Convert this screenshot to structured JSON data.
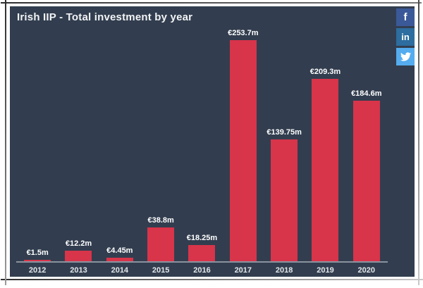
{
  "header": {
    "title": "Irish IIP - Total investment by year"
  },
  "social": {
    "facebook_glyph": "f",
    "linkedin_glyph": "in"
  },
  "colors": {
    "panel_background": "#323e4f",
    "bar_red": "#d8344a",
    "axis_line": "#9aa1ab",
    "facebook_blue": "#3b5998",
    "linkedin_blue": "#2d6d9f",
    "twitter_blue": "#55acee"
  },
  "chart_data": {
    "type": "bar",
    "title": "Irish IIP - Total investment by year",
    "categories": [
      "2012",
      "2013",
      "2014",
      "2015",
      "2016",
      "2017",
      "2018",
      "2019",
      "2020"
    ],
    "values": [
      1.5,
      12.2,
      4.45,
      38.8,
      18.25,
      253.7,
      139.75,
      209.3,
      184.6
    ],
    "value_labels": [
      "€1.5m",
      "€12.2m",
      "€4.45m",
      "€38.8m",
      "€18.25m",
      "€253.7m",
      "€139.75m",
      "€209.3m",
      "€184.6m"
    ],
    "xlabel": "",
    "ylabel": "",
    "ylim": [
      0,
      260
    ],
    "bar_color": "#d8344a",
    "grid": false,
    "legend": "none"
  }
}
